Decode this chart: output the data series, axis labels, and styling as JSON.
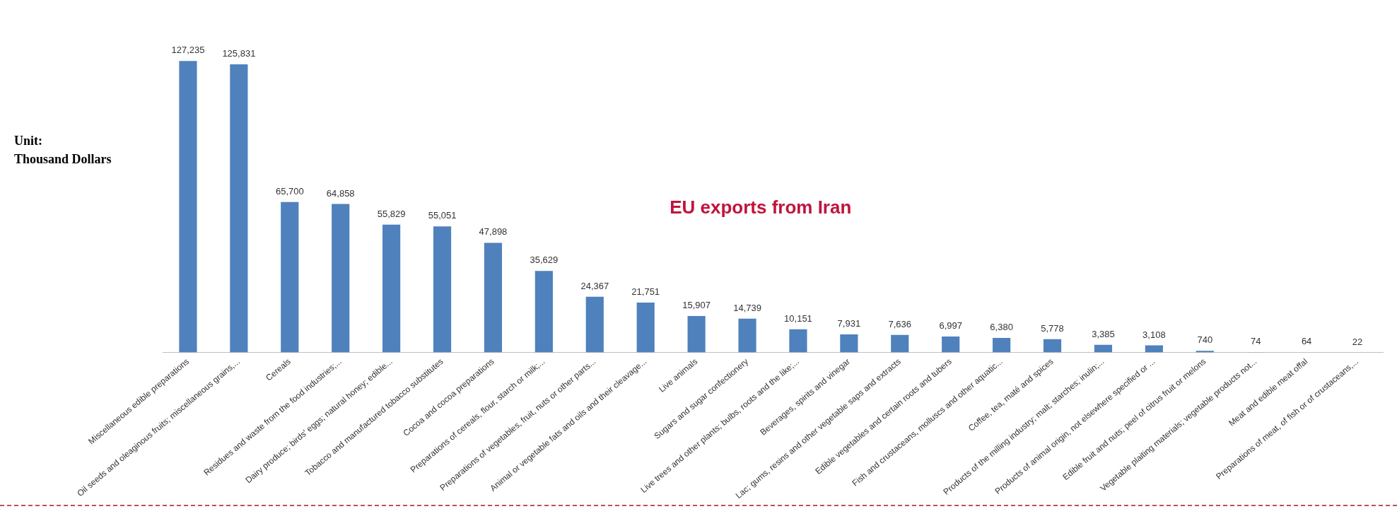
{
  "chart_data": {
    "type": "bar",
    "title": "EU exports from Iran",
    "ylabel": "Unit:\nThousand Dollars",
    "categories": [
      "Miscellaneous edible preparations",
      "Oil seeds and oleaginous fruits; miscellaneous grains,...",
      "Cereals",
      "Residues and waste from the food industries;...",
      "Dairy produce; birds' eggs; natural honey; edible...",
      "Tobacco and manufactured tobacco substitutes",
      "Cocoa and cocoa preparations",
      "Preparations of cereals, flour, starch or milk;...",
      "Preparations of vegetables, fruit, nuts or other parts...",
      "Animal or vegetable fats and oils and their cleavage...",
      "Live animals",
      "Sugars and sugar confectionery",
      "Live trees and other plants; bulbs, roots and the like;...",
      "Beverages, spirits and vinegar",
      "Lac; gums, resins and other vegetable saps and extracts",
      "Edible vegetables and certain roots and tubers",
      "Fish and crustaceans, molluscs and other aquatic...",
      "Coffee, tea, maté and spices",
      "Products of the milling industry; malt; starches; inulin;...",
      "Products of animal origin, not elsewhere specified or ...",
      "Edible fruit and nuts; peel of citrus fruit or melons",
      "Vegetable plaiting materials; vegetable products not...",
      "Meat and edible meat offal",
      "Preparations of meat, of fish or of crustaceans,..."
    ],
    "values": [
      127235,
      125831,
      65700,
      64858,
      55829,
      55051,
      47898,
      35629,
      24367,
      21751,
      15907,
      14739,
      10151,
      7931,
      7636,
      6997,
      6380,
      5778,
      3385,
      3108,
      740,
      74,
      64,
      22
    ],
    "value_labels": [
      "127,235",
      "125,831",
      "65,700",
      "64,858",
      "55,829",
      "55,051",
      "47,898",
      "35,629",
      "24,367",
      "21,751",
      "15,907",
      "14,739",
      "10,151",
      "7,931",
      "7,636",
      "6,997",
      "6,380",
      "5,778",
      "3,385",
      "3,108",
      "740",
      "74",
      "64",
      "22"
    ],
    "color": "#4f81bd",
    "grid": false,
    "legend": false
  }
}
